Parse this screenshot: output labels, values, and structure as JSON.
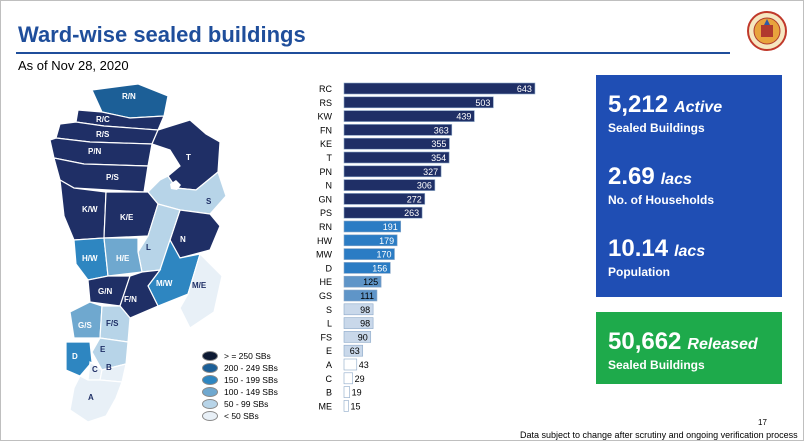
{
  "header": {
    "title": "Ward-wise sealed buildings",
    "subtitle": "As of Nov 28, 2020"
  },
  "legend": [
    {
      "label": "> = 250 SBs",
      "color": "#0d1a33"
    },
    {
      "label": "200 - 249 SBs",
      "color": "#1c5f97"
    },
    {
      "label": "150 - 199 SBs",
      "color": "#2e86c1"
    },
    {
      "label": "100 - 149 SBs",
      "color": "#6fa8cf"
    },
    {
      "label": "50 - 99 SBs",
      "color": "#b7d4e8"
    },
    {
      "label": "< 50 SBs",
      "color": "#e8f0f7"
    }
  ],
  "map": {
    "ward_labels": [
      "R/N",
      "R/C",
      "R/S",
      "P/N",
      "P/S",
      "T",
      "S",
      "K/W",
      "K/E",
      "N",
      "H/W",
      "H/E",
      "L",
      "M/W",
      "M/E",
      "G/N",
      "F/N",
      "G/S",
      "F/S",
      "E",
      "D",
      "C",
      "B",
      "A"
    ]
  },
  "stats": {
    "active_value": "5,212",
    "active_unit": "Active",
    "active_label": "Sealed Buildings",
    "households_value": "2.69",
    "households_unit": "lacs",
    "households_label": "No. of Households",
    "population_value": "10.14",
    "population_unit": "lacs",
    "population_label": "Population",
    "released_value": "50,662",
    "released_unit": "Released",
    "released_label": "Sealed Buildings"
  },
  "page_number": "17",
  "footnote": "Data subject to change after scrutiny and ongoing verification process",
  "chart_data": {
    "type": "bar",
    "orientation": "horizontal",
    "title": "",
    "xlabel": "",
    "ylabel": "",
    "categories": [
      "RC",
      "RS",
      "KW",
      "FN",
      "KE",
      "T",
      "PN",
      "N",
      "GN",
      "PS",
      "RN",
      "HW",
      "MW",
      "D",
      "HE",
      "GS",
      "S",
      "L",
      "FS",
      "E",
      "A",
      "C",
      "B",
      "ME"
    ],
    "values": [
      643,
      503,
      439,
      363,
      355,
      354,
      327,
      306,
      272,
      263,
      191,
      179,
      170,
      156,
      125,
      111,
      98,
      98,
      90,
      63,
      43,
      29,
      19,
      15
    ],
    "xlim": [
      0,
      660
    ],
    "grid": false,
    "data_labels": true,
    "color_bins": [
      {
        "min": 250,
        "color": "#1f2f66"
      },
      {
        "min": 150,
        "color": "#2b7cc4"
      },
      {
        "min": 100,
        "color": "#5f95c8"
      },
      {
        "min": 50,
        "color": "#c9d8ea"
      },
      {
        "min": 0,
        "color": "#ffffff"
      }
    ]
  }
}
